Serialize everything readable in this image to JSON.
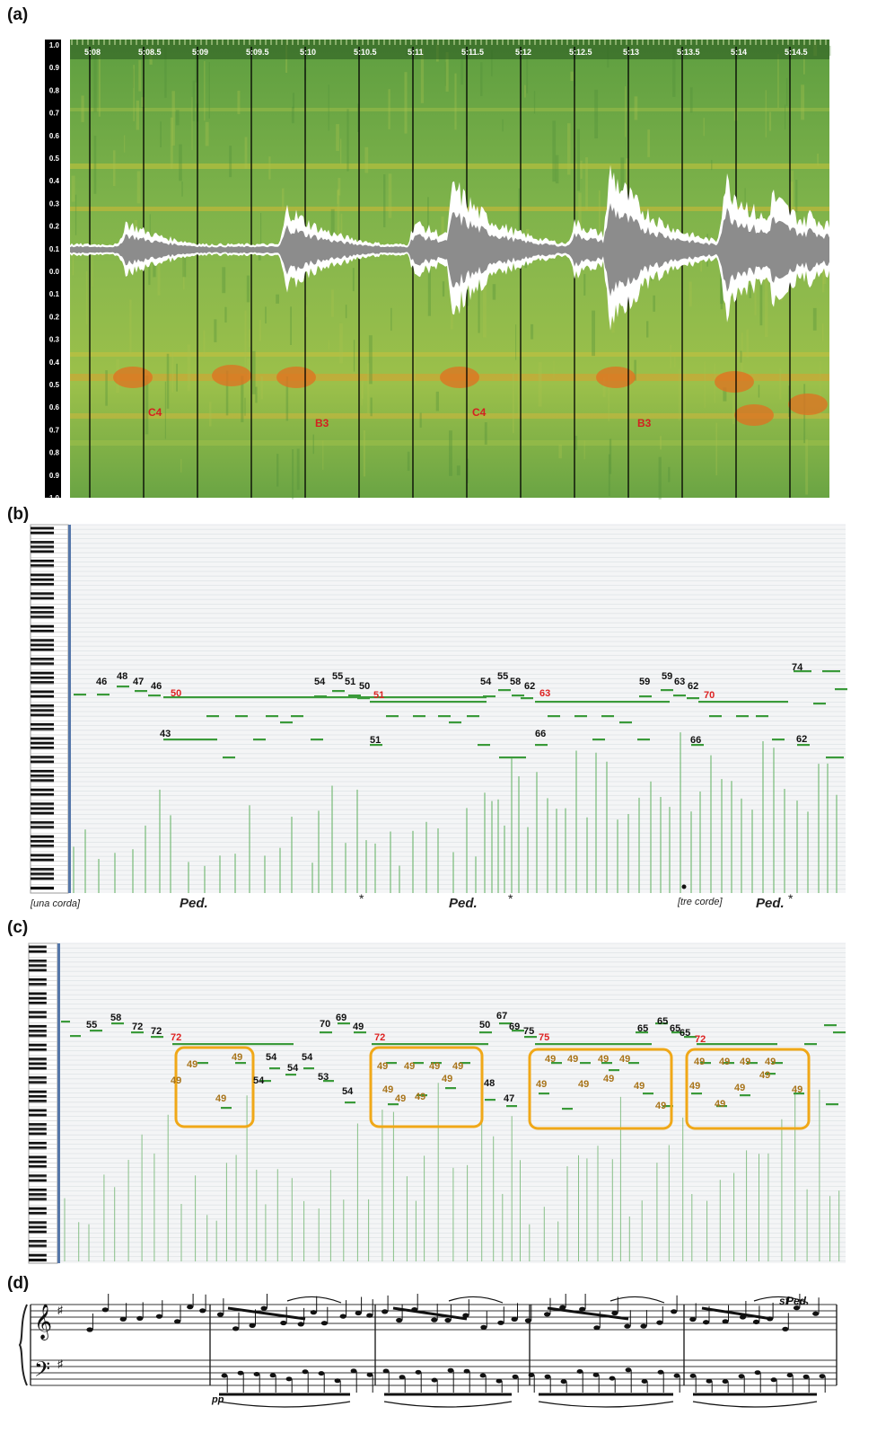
{
  "panels": {
    "a": "(a)",
    "b": "(b)",
    "c": "(c)",
    "d": "(d)"
  },
  "spectrogram": {
    "yticks": [
      "1.0",
      "0.9",
      "0.8",
      "0.7",
      "0.6",
      "0.5",
      "0.4",
      "0.3",
      "0.2",
      "0.1",
      "0.0",
      "0.1",
      "0.2",
      "0.3",
      "0.4",
      "0.5",
      "0.6",
      "0.7",
      "0.8",
      "0.9",
      "1.0"
    ],
    "times": [
      "5:08",
      "5:08.5",
      "5:09",
      "5:09.5",
      "5:10",
      "5:10.5",
      "5:11",
      "5:11.5",
      "5:12",
      "5:12.5",
      "5:13",
      "5:13.5",
      "5:14",
      "5:14.5"
    ],
    "note_labels": [
      "C4",
      "B3",
      "C4",
      "B3"
    ],
    "colors": {
      "bg": "#6fa84a",
      "hot": "#e07020",
      "label": "#d42020",
      "wave": "#ffffff"
    }
  },
  "piano_roll_b": {
    "labels": [
      {
        "t": "46",
        "c": "black"
      },
      {
        "t": "48",
        "c": "black"
      },
      {
        "t": "47",
        "c": "black"
      },
      {
        "t": "46",
        "c": "black"
      },
      {
        "t": "50",
        "c": "red"
      },
      {
        "t": "43",
        "c": "black"
      },
      {
        "t": "54",
        "c": "black"
      },
      {
        "t": "55",
        "c": "black"
      },
      {
        "t": "51",
        "c": "black"
      },
      {
        "t": "50",
        "c": "black"
      },
      {
        "t": "51",
        "c": "red"
      },
      {
        "t": "51",
        "c": "black"
      },
      {
        "t": "54",
        "c": "black"
      },
      {
        "t": "55",
        "c": "black"
      },
      {
        "t": "58",
        "c": "black"
      },
      {
        "t": "62",
        "c": "black"
      },
      {
        "t": "63",
        "c": "red"
      },
      {
        "t": "66",
        "c": "black"
      },
      {
        "t": "59",
        "c": "black"
      },
      {
        "t": "59",
        "c": "black"
      },
      {
        "t": "63",
        "c": "black"
      },
      {
        "t": "62",
        "c": "black"
      },
      {
        "t": "70",
        "c": "red"
      },
      {
        "t": "66",
        "c": "black"
      },
      {
        "t": "74",
        "c": "black"
      },
      {
        "t": "62",
        "c": "black"
      }
    ],
    "pedal_text": [
      "[una corda]",
      "Ped.",
      "*",
      "Ped.",
      "*",
      "[tre corde]",
      "Ped.",
      "*"
    ]
  },
  "piano_roll_c": {
    "labels": [
      {
        "t": "55",
        "c": "black"
      },
      {
        "t": "58",
        "c": "black"
      },
      {
        "t": "72",
        "c": "black"
      },
      {
        "t": "72",
        "c": "black"
      },
      {
        "t": "72",
        "c": "red"
      },
      {
        "t": "49",
        "c": "brown"
      },
      {
        "t": "49",
        "c": "brown"
      },
      {
        "t": "49",
        "c": "brown"
      },
      {
        "t": "49",
        "c": "brown"
      },
      {
        "t": "54",
        "c": "black"
      },
      {
        "t": "54",
        "c": "black"
      },
      {
        "t": "54",
        "c": "black"
      },
      {
        "t": "54",
        "c": "black"
      },
      {
        "t": "70",
        "c": "black"
      },
      {
        "t": "69",
        "c": "black"
      },
      {
        "t": "49",
        "c": "black"
      },
      {
        "t": "53",
        "c": "black"
      },
      {
        "t": "54",
        "c": "black"
      },
      {
        "t": "72",
        "c": "red"
      },
      {
        "t": "49",
        "c": "brown"
      },
      {
        "t": "49",
        "c": "brown"
      },
      {
        "t": "49",
        "c": "brown"
      },
      {
        "t": "49",
        "c": "brown"
      },
      {
        "t": "49",
        "c": "brown"
      },
      {
        "t": "49",
        "c": "brown"
      },
      {
        "t": "49",
        "c": "brown"
      },
      {
        "t": "49",
        "c": "brown"
      },
      {
        "t": "50",
        "c": "black"
      },
      {
        "t": "67",
        "c": "black"
      },
      {
        "t": "69",
        "c": "black"
      },
      {
        "t": "75",
        "c": "black"
      },
      {
        "t": "75",
        "c": "red"
      },
      {
        "t": "48",
        "c": "black"
      },
      {
        "t": "47",
        "c": "black"
      },
      {
        "t": "49",
        "c": "brown"
      },
      {
        "t": "49",
        "c": "brown"
      },
      {
        "t": "49",
        "c": "brown"
      },
      {
        "t": "49",
        "c": "brown"
      },
      {
        "t": "49",
        "c": "brown"
      },
      {
        "t": "49",
        "c": "brown"
      },
      {
        "t": "49",
        "c": "brown"
      },
      {
        "t": "49",
        "c": "brown"
      },
      {
        "t": "49",
        "c": "brown"
      },
      {
        "t": "65",
        "c": "black"
      },
      {
        "t": "65",
        "c": "black"
      },
      {
        "t": "65",
        "c": "black"
      },
      {
        "t": "65",
        "c": "black"
      },
      {
        "t": "72",
        "c": "red"
      },
      {
        "t": "49",
        "c": "brown"
      },
      {
        "t": "49",
        "c": "brown"
      },
      {
        "t": "49",
        "c": "brown"
      },
      {
        "t": "49",
        "c": "brown"
      },
      {
        "t": "49",
        "c": "brown"
      },
      {
        "t": "49",
        "c": "brown"
      },
      {
        "t": "49",
        "c": "brown"
      },
      {
        "t": "49",
        "c": "brown"
      },
      {
        "t": "49",
        "c": "brown"
      }
    ],
    "box_color": "#f0a818"
  },
  "score": {
    "dynamic_pp": "pp",
    "dynamic_sf": "sf",
    "pedal": "Ped."
  }
}
